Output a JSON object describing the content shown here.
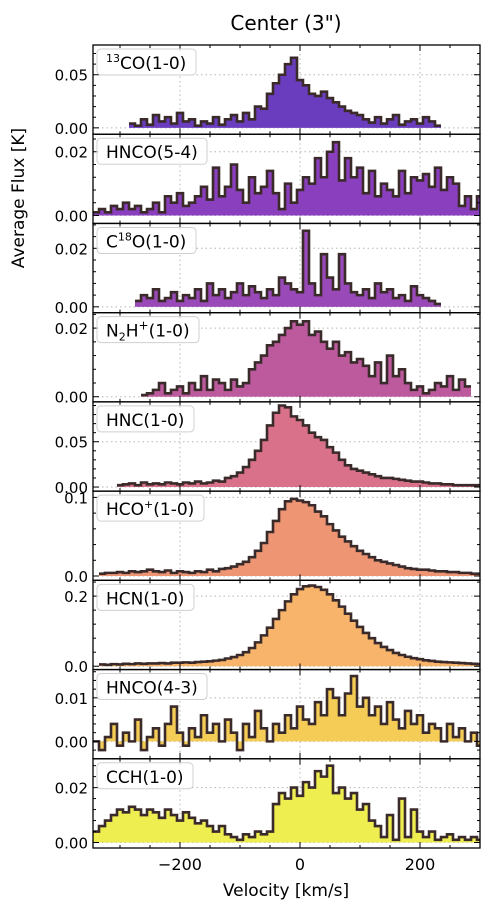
{
  "chart_data": {
    "type": "line",
    "title": "Center (3\")",
    "xlabel": "Velocity [km/s]",
    "ylabel": "Average Flux [K]",
    "xlim": [
      -345,
      300
    ],
    "xticks": [
      -200,
      0,
      200
    ],
    "x_minor_step": 50,
    "grid": "dotted",
    "panels": [
      {
        "label": "13CO(1-0)",
        "label_sup": "13",
        "label_main": "CO(1-0)",
        "color": "#6a3dbe",
        "ylim": [
          -0.006,
          0.078
        ],
        "yticks": [
          0.0,
          0.05
        ],
        "ytick_labels": [
          "0.00",
          "0.05"
        ],
        "x0": -280,
        "dx": 10,
        "values": [
          0.004,
          0.002,
          0.008,
          0.003,
          0.012,
          0.006,
          0.01,
          0.004,
          0.014,
          0.006,
          0.008,
          0.002,
          0.006,
          0.004,
          0.01,
          0.003,
          0.008,
          0.012,
          0.006,
          0.014,
          0.008,
          0.02,
          0.018,
          0.032,
          0.042,
          0.05,
          0.06,
          0.066,
          0.045,
          0.04,
          0.032,
          0.03,
          0.034,
          0.028,
          0.024,
          0.02,
          0.016,
          0.014,
          0.012,
          0.008,
          0.005,
          0.01,
          0.004,
          0.008,
          0.012,
          0.003,
          0.006,
          0.008,
          0.004,
          0.01,
          0.006,
          0.002
        ]
      },
      {
        "label": "HNCO(5-4)",
        "label_main": "HNCO(5-4)",
        "color": "#8a3fbf",
        "ylim": [
          -0.0025,
          0.0255
        ],
        "yticks": [
          0.0,
          0.02
        ],
        "ytick_labels": [
          "0.00",
          "0.02"
        ],
        "x0": -340,
        "dx": 10,
        "values": [
          0.001,
          0.002,
          0.001,
          0.003,
          0.002,
          0.004,
          0.002,
          0.003,
          0.001,
          0.002,
          0.004,
          0.001,
          0.006,
          0.004,
          0.007,
          0.003,
          0.004,
          0.006,
          0.009,
          0.005,
          0.015,
          0.006,
          0.009,
          0.016,
          0.008,
          0.004,
          0.012,
          0.007,
          0.009,
          0.014,
          0.007,
          0.002,
          0.01,
          0.004,
          0.008,
          0.012,
          0.01,
          0.018,
          0.012,
          0.02,
          0.023,
          0.011,
          0.018,
          0.012,
          0.015,
          0.007,
          0.014,
          0.006,
          0.01,
          0.008,
          0.006,
          0.014,
          0.007,
          0.012,
          0.011,
          0.013,
          0.009,
          0.015,
          0.008,
          0.012,
          0.01,
          0.003,
          0.006,
          0.002,
          0.006,
          0.004,
          0.003,
          0.002,
          0.004,
          0.001,
          0.002,
          0.003
        ]
      },
      {
        "label": "C18O(1-0)",
        "label_main": "C",
        "label_sup": "18",
        "label_tail": "O(1-0)",
        "color": "#9a4ab8",
        "ylim": [
          -0.002,
          0.0285
        ],
        "yticks": [
          0.0,
          0.02
        ],
        "ytick_labels": [
          "0.00",
          "0.02"
        ],
        "x0": -270,
        "dx": 10,
        "values": [
          0.002,
          0.004,
          0.003,
          0.006,
          0.002,
          0.003,
          0.005,
          0.002,
          0.004,
          0.003,
          0.006,
          0.002,
          0.008,
          0.004,
          0.006,
          0.003,
          0.005,
          0.008,
          0.004,
          0.007,
          0.005,
          0.003,
          0.006,
          0.004,
          0.01,
          0.008,
          0.006,
          0.005,
          0.026,
          0.008,
          0.004,
          0.018,
          0.01,
          0.006,
          0.018,
          0.008,
          0.005,
          0.004,
          0.006,
          0.003,
          0.008,
          0.005,
          0.006,
          0.003,
          0.004,
          0.002,
          0.007,
          0.004,
          0.003,
          0.002,
          0.001
        ]
      },
      {
        "label": "N2H+(1-0)",
        "label_main": "N",
        "label_sub": "2",
        "label_mid": "H",
        "label_sup": "+",
        "label_tail": "(1-0)",
        "color": "#bd5a9e",
        "ylim": [
          -0.0015,
          0.0245
        ],
        "yticks": [
          0.0,
          0.02
        ],
        "ytick_labels": [
          "0.00",
          "0.02"
        ],
        "x0": -260,
        "dx": 10,
        "values": [
          0.0005,
          0.001,
          0.002,
          0.004,
          0.001,
          0.002,
          0.003,
          0.001,
          0.004,
          0.002,
          0.006,
          0.002,
          0.005,
          0.004,
          0.002,
          0.005,
          0.003,
          0.004,
          0.008,
          0.01,
          0.012,
          0.015,
          0.016,
          0.018,
          0.02,
          0.022,
          0.021,
          0.022,
          0.018,
          0.019,
          0.016,
          0.014,
          0.016,
          0.012,
          0.013,
          0.01,
          0.011,
          0.009,
          0.006,
          0.01,
          0.004,
          0.012,
          0.006,
          0.008,
          0.004,
          0.002,
          0.003,
          0.001,
          0.002,
          0.004,
          0.003,
          0.006,
          0.002,
          0.005,
          0.003
        ]
      },
      {
        "label": "HNC(1-0)",
        "label_main": "HNC(1-0)",
        "color": "#d9718a",
        "ylim": [
          -0.0045,
          0.094
        ],
        "yticks": [
          0.0,
          0.05
        ],
        "ytick_labels": [
          "0.00",
          "0.05"
        ],
        "x0": -300,
        "dx": 10,
        "values": [
          0.002,
          0.003,
          0.004,
          0.002,
          0.005,
          0.003,
          0.004,
          0.003,
          0.005,
          0.004,
          0.003,
          0.005,
          0.004,
          0.006,
          0.004,
          0.005,
          0.007,
          0.006,
          0.01,
          0.012,
          0.016,
          0.022,
          0.03,
          0.04,
          0.052,
          0.068,
          0.082,
          0.09,
          0.088,
          0.078,
          0.074,
          0.068,
          0.06,
          0.055,
          0.052,
          0.044,
          0.038,
          0.03,
          0.024,
          0.02,
          0.018,
          0.016,
          0.014,
          0.012,
          0.01,
          0.01,
          0.009,
          0.008,
          0.007,
          0.006,
          0.006,
          0.005,
          0.004,
          0.004,
          0.003,
          0.003,
          0.002,
          0.002,
          0.002,
          0.002,
          0.002
        ]
      },
      {
        "label": "HCO+(1-0)",
        "label_main": "HCO",
        "label_sup": "+",
        "label_tail": "(1-0)",
        "color": "#ee9574",
        "ylim": [
          -0.0055,
          0.108
        ],
        "yticks": [
          0.0,
          0.1
        ],
        "ytick_labels": [
          "0.0",
          "0.1"
        ],
        "x0": -330,
        "dx": 10,
        "values": [
          0.003,
          0.004,
          0.004,
          0.005,
          0.004,
          0.006,
          0.005,
          0.006,
          0.008,
          0.006,
          0.005,
          0.007,
          0.004,
          0.006,
          0.005,
          0.004,
          0.006,
          0.005,
          0.008,
          0.006,
          0.009,
          0.01,
          0.012,
          0.015,
          0.018,
          0.024,
          0.032,
          0.042,
          0.056,
          0.07,
          0.085,
          0.095,
          0.098,
          0.096,
          0.094,
          0.09,
          0.082,
          0.076,
          0.066,
          0.058,
          0.05,
          0.044,
          0.038,
          0.032,
          0.028,
          0.024,
          0.02,
          0.018,
          0.016,
          0.014,
          0.012,
          0.01,
          0.009,
          0.008,
          0.008,
          0.007,
          0.006,
          0.006,
          0.005,
          0.005,
          0.004,
          0.004,
          0.003,
          0.003
        ]
      },
      {
        "label": "HCN(1-0)",
        "label_main": "HCN(1-0)",
        "color": "#f8b46a",
        "ylim": [
          -0.0095,
          0.245
        ],
        "yticks": [
          0.0,
          0.2
        ],
        "ytick_labels": [
          "0.0",
          "0.2"
        ],
        "x0": -330,
        "dx": 10,
        "values": [
          0.005,
          0.004,
          0.006,
          0.005,
          0.007,
          0.006,
          0.008,
          0.007,
          0.008,
          0.008,
          0.009,
          0.008,
          0.01,
          0.01,
          0.011,
          0.01,
          0.012,
          0.013,
          0.014,
          0.016,
          0.018,
          0.022,
          0.026,
          0.032,
          0.04,
          0.052,
          0.068,
          0.088,
          0.11,
          0.135,
          0.16,
          0.185,
          0.205,
          0.22,
          0.228,
          0.23,
          0.226,
          0.218,
          0.205,
          0.188,
          0.17,
          0.15,
          0.13,
          0.112,
          0.095,
          0.08,
          0.066,
          0.055,
          0.046,
          0.038,
          0.032,
          0.027,
          0.023,
          0.02,
          0.017,
          0.015,
          0.013,
          0.012,
          0.011,
          0.01,
          0.009,
          0.008,
          0.007,
          0.006
        ]
      },
      {
        "label": "HNCO(4-3)",
        "label_main": "HNCO(4-3)",
        "color": "#f5cd56",
        "ylim": [
          -0.004,
          0.0165
        ],
        "yticks": [
          0.0,
          0.01
        ],
        "ytick_labels": [
          "0.00",
          "0.01"
        ],
        "x0": -340,
        "dx": 10,
        "values": [
          0.0,
          -0.002,
          0.001,
          0.004,
          -0.001,
          0.002,
          0.0,
          0.005,
          -0.002,
          0.001,
          0.003,
          -0.001,
          0.004,
          0.008,
          0.002,
          -0.001,
          0.003,
          0.001,
          0.006,
          0.002,
          0.004,
          0.0,
          0.005,
          0.002,
          -0.002,
          0.004,
          0.001,
          0.007,
          0.003,
          0.0,
          0.004,
          0.002,
          0.006,
          0.003,
          0.008,
          0.005,
          0.004,
          0.009,
          0.006,
          0.012,
          0.01,
          0.006,
          0.011,
          0.015,
          0.008,
          0.01,
          0.006,
          0.008,
          0.004,
          0.009,
          0.005,
          0.003,
          0.007,
          0.004,
          0.006,
          0.002,
          0.004,
          0.003,
          0.0,
          0.004,
          0.001,
          0.003,
          0.0,
          0.002,
          -0.001
        ]
      },
      {
        "label": "CCH(1-0)",
        "label_main": "CCH(1-0)",
        "color": "#eeee50",
        "ylim": [
          -0.002,
          0.0305
        ],
        "yticks": [
          0.0,
          0.02
        ],
        "ytick_labels": [
          "0.00",
          "0.02"
        ],
        "x0": -340,
        "dx": 10,
        "values": [
          0.004,
          0.006,
          0.008,
          0.01,
          0.012,
          0.011,
          0.013,
          0.012,
          0.01,
          0.012,
          0.011,
          0.009,
          0.012,
          0.01,
          0.008,
          0.011,
          0.009,
          0.007,
          0.008,
          0.006,
          0.004,
          0.006,
          0.003,
          0.002,
          0.001,
          0.003,
          0.002,
          0.004,
          0.003,
          0.004,
          0.014,
          0.018,
          0.016,
          0.02,
          0.017,
          0.022,
          0.02,
          0.026,
          0.024,
          0.028,
          0.018,
          0.02,
          0.016,
          0.018,
          0.012,
          0.014,
          0.008,
          0.006,
          0.002,
          0.01,
          0.001,
          0.016,
          0.002,
          0.012,
          0.004,
          0.002,
          0.004,
          0.001,
          0.002,
          0.003,
          0.001,
          0.002,
          0.001,
          0.002,
          0.001
        ]
      }
    ]
  }
}
